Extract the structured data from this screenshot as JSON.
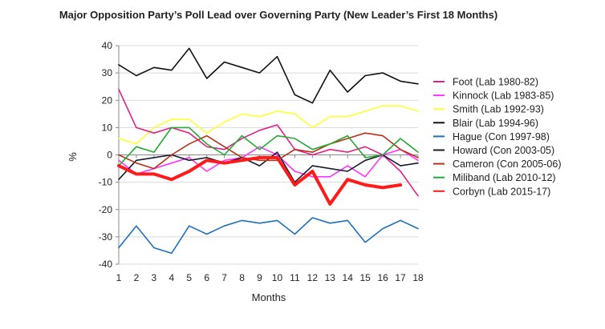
{
  "chart_data": {
    "type": "line",
    "title": "Major Opposition Party’s Poll Lead over Governing Party (New Leader’s First 18 Months)",
    "xlabel": "Months",
    "ylabel": "%",
    "x": [
      1,
      2,
      3,
      4,
      5,
      6,
      7,
      8,
      9,
      10,
      11,
      12,
      13,
      14,
      15,
      16,
      17,
      18
    ],
    "ylim": [
      -40,
      40
    ],
    "yticks": [
      -40,
      -30,
      -20,
      -10,
      0,
      10,
      20,
      30,
      40
    ],
    "grid": "horizontal",
    "legend_position": "right",
    "series": [
      {
        "name": "Foot (Lab 1980-82)",
        "color": "#e0218a",
        "width": 1.6,
        "values": [
          24,
          10,
          8,
          10,
          8,
          3,
          2,
          6,
          9,
          11,
          2,
          0,
          2,
          1,
          3,
          0,
          -6,
          -15
        ]
      },
      {
        "name": "Kinnock (Lab 1983-85)",
        "color": "#ff33ff",
        "width": 1.6,
        "values": [
          -2,
          -7,
          -5,
          -3,
          -1,
          -6,
          -2,
          -1,
          3,
          0,
          -6,
          -8,
          -8,
          -4,
          -8,
          0,
          2,
          -2
        ]
      },
      {
        "name": "Smith (Lab 1992-93)",
        "color": "#ffff33",
        "width": 1.6,
        "values": [
          6,
          4,
          10,
          13,
          13,
          8,
          12,
          15,
          14,
          16,
          15,
          10,
          14,
          14,
          16,
          18,
          18,
          16
        ]
      },
      {
        "name": "Blair (Lab 1994-96)",
        "color": "#111111",
        "width": 1.6,
        "values": [
          33,
          29,
          32,
          31,
          39,
          28,
          34,
          32,
          30,
          36,
          22,
          19,
          31,
          23,
          29,
          30,
          27,
          26
        ]
      },
      {
        "name": "Hague (Con 1997-98)",
        "color": "#1f6fbf",
        "width": 1.6,
        "values": [
          -34,
          -26,
          -34,
          -36,
          -26,
          -29,
          -26,
          -24,
          -25,
          -24,
          -29,
          -23,
          -25,
          -24,
          -32,
          -27,
          -24,
          -27
        ]
      },
      {
        "name": "Howard (Con 2003-05)",
        "color": "#1a1a2e",
        "width": 1.6,
        "values": [
          -9,
          -2,
          -1,
          0,
          -2,
          -1,
          -3,
          -1,
          -4,
          1,
          -10,
          -4,
          -5,
          -6,
          -2,
          0,
          -4,
          -3
        ]
      },
      {
        "name": "Cameron (Con 2005-06)",
        "color": "#b5321a",
        "width": 1.6,
        "values": [
          0,
          -3,
          -5,
          0,
          4,
          7,
          3,
          -1,
          -2,
          -2,
          2,
          1,
          4,
          6,
          8,
          7,
          2,
          -1
        ]
      },
      {
        "name": "Miliband (Lab 2010-12)",
        "color": "#22aa33",
        "width": 1.6,
        "values": [
          -4,
          3,
          1,
          10,
          10,
          4,
          0,
          7,
          2,
          7,
          6,
          2,
          4,
          7,
          -1,
          0,
          6,
          1
        ]
      },
      {
        "name": "Corbyn (Lab 2015-17)",
        "color": "#ff1a1a",
        "width": 4,
        "values": [
          -4,
          -7,
          -7,
          -9,
          -6,
          -2,
          -3,
          -2,
          -1,
          -1,
          -11,
          -6,
          -18,
          -9,
          -11,
          -12,
          -11,
          null
        ]
      }
    ]
  }
}
